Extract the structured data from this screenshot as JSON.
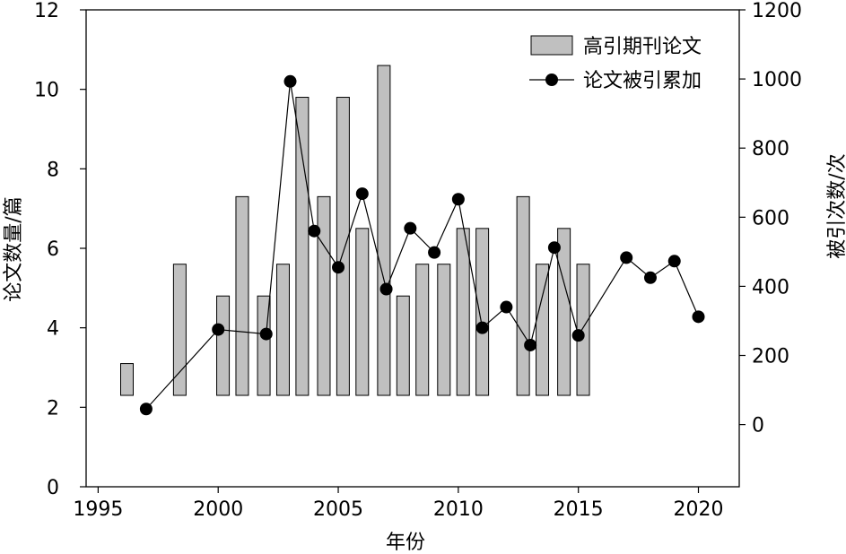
{
  "chart_data": {
    "type": "bar+line",
    "title": "",
    "xlabel": "年份",
    "ylabel_left": "论文数量/篇",
    "ylabel_right": "被引次数/次",
    "xlim": [
      1994.5,
      2021.7
    ],
    "ylim_left": [
      0,
      12
    ],
    "ylim_right": [
      -180,
      1200
    ],
    "x_ticks": [
      1995,
      2000,
      2005,
      2010,
      2015,
      2020
    ],
    "y_left_ticks": [
      0,
      2,
      4,
      6,
      8,
      10,
      12
    ],
    "y_right_ticks": [
      0,
      200,
      400,
      600,
      800,
      1000,
      1200
    ],
    "grid": false,
    "legend_position": "top-right",
    "bar_base": 2.3,
    "colors": {
      "bar_fill": "#c0c0c0",
      "bar_stroke": "#000000",
      "line": "#000000",
      "marker": "#000000"
    },
    "bar_series": {
      "name": "高引期刊论文",
      "axis": "left",
      "points": [
        {
          "x": 1996.2,
          "y": 3.1
        },
        {
          "x": 1998.4,
          "y": 5.6
        },
        {
          "x": 2000.2,
          "y": 4.8
        },
        {
          "x": 2001.0,
          "y": 7.3
        },
        {
          "x": 2001.9,
          "y": 4.8
        },
        {
          "x": 2002.7,
          "y": 5.6
        },
        {
          "x": 2003.5,
          "y": 9.8
        },
        {
          "x": 2004.4,
          "y": 7.3
        },
        {
          "x": 2005.2,
          "y": 9.8
        },
        {
          "x": 2006.0,
          "y": 6.5
        },
        {
          "x": 2006.9,
          "y": 10.6
        },
        {
          "x": 2007.7,
          "y": 4.8
        },
        {
          "x": 2008.5,
          "y": 5.6
        },
        {
          "x": 2009.4,
          "y": 5.6
        },
        {
          "x": 2010.2,
          "y": 6.5
        },
        {
          "x": 2011.0,
          "y": 6.5
        },
        {
          "x": 2012.7,
          "y": 7.3
        },
        {
          "x": 2013.5,
          "y": 5.6
        },
        {
          "x": 2014.4,
          "y": 6.5
        },
        {
          "x": 2015.2,
          "y": 5.6
        }
      ]
    },
    "line_series": {
      "name": "论文被引累加",
      "axis": "right",
      "points": [
        {
          "x": 1997,
          "y": 45
        },
        {
          "x": 2000,
          "y": 275
        },
        {
          "x": 2002,
          "y": 262
        },
        {
          "x": 2003,
          "y": 993
        },
        {
          "x": 2004,
          "y": 560
        },
        {
          "x": 2005,
          "y": 455
        },
        {
          "x": 2006,
          "y": 668
        },
        {
          "x": 2007,
          "y": 392
        },
        {
          "x": 2008,
          "y": 568
        },
        {
          "x": 2009,
          "y": 498
        },
        {
          "x": 2010,
          "y": 652
        },
        {
          "x": 2011,
          "y": 280
        },
        {
          "x": 2012,
          "y": 340
        },
        {
          "x": 2013,
          "y": 230
        },
        {
          "x": 2014,
          "y": 512
        },
        {
          "x": 2015,
          "y": 258
        },
        {
          "x": 2017,
          "y": 483
        },
        {
          "x": 2018,
          "y": 425
        },
        {
          "x": 2019,
          "y": 473
        },
        {
          "x": 2020,
          "y": 312
        }
      ]
    }
  }
}
